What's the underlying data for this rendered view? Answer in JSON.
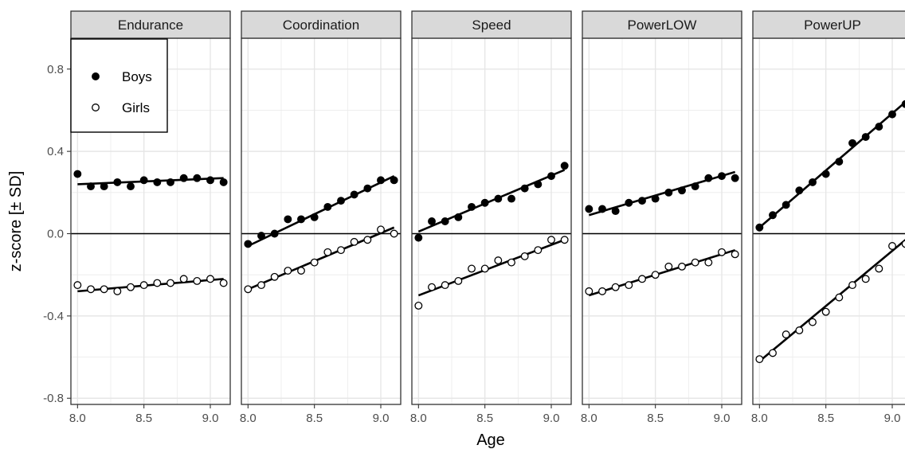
{
  "chart_data": {
    "type": "scatter",
    "xlabel": "Age",
    "ylabel": "z-score [± SD]",
    "xlim": [
      7.95,
      9.15
    ],
    "ylim": [
      -0.83,
      0.95
    ],
    "x_ticks": [
      8.0,
      8.5,
      9.0
    ],
    "x_tick_labels": [
      "8.0",
      "8.5",
      "9.0"
    ],
    "y_ticks": [
      -0.8,
      -0.4,
      0.0,
      0.4,
      0.8
    ],
    "y_tick_labels": [
      "-0.8",
      "-0.4",
      "0.0",
      "0.4",
      "0.8"
    ],
    "reference_line_y": 0,
    "grid": true,
    "legend": {
      "placement": "top-left",
      "entries": [
        {
          "label": "Boys",
          "marker": "filled-circle"
        },
        {
          "label": "Girls",
          "marker": "open-circle"
        }
      ]
    },
    "colors": {
      "point": "#000000",
      "fit_line": "#000000",
      "strip_bg": "#d9d9d9",
      "grid": "#ebebeb"
    },
    "ages": [
      8.0,
      8.1,
      8.2,
      8.3,
      8.4,
      8.5,
      8.6,
      8.7,
      8.8,
      8.9,
      9.0,
      9.1
    ],
    "panels": [
      {
        "name": "Endurance",
        "series": [
          {
            "name": "Boys",
            "values": [
              0.29,
              0.23,
              0.23,
              0.25,
              0.23,
              0.26,
              0.25,
              0.25,
              0.27,
              0.27,
              0.26,
              0.25
            ],
            "fit": [
              0.24,
              0.27
            ]
          },
          {
            "name": "Girls",
            "values": [
              -0.25,
              -0.27,
              -0.27,
              -0.28,
              -0.26,
              -0.25,
              -0.24,
              -0.24,
              -0.22,
              -0.23,
              -0.22,
              -0.24
            ],
            "fit": [
              -0.28,
              -0.22
            ]
          }
        ]
      },
      {
        "name": "Coordination",
        "series": [
          {
            "name": "Boys",
            "values": [
              -0.05,
              -0.01,
              0.0,
              0.07,
              0.07,
              0.08,
              0.13,
              0.16,
              0.19,
              0.22,
              0.26,
              0.26
            ],
            "fit": [
              -0.06,
              0.28
            ]
          },
          {
            "name": "Girls",
            "values": [
              -0.27,
              -0.25,
              -0.21,
              -0.18,
              -0.18,
              -0.14,
              -0.09,
              -0.08,
              -0.04,
              -0.03,
              0.02,
              0.0
            ],
            "fit": [
              -0.27,
              0.03
            ]
          }
        ]
      },
      {
        "name": "Speed",
        "series": [
          {
            "name": "Boys",
            "values": [
              -0.02,
              0.06,
              0.06,
              0.08,
              0.13,
              0.15,
              0.17,
              0.17,
              0.22,
              0.24,
              0.28,
              0.33
            ],
            "fit": [
              0.01,
              0.31
            ]
          },
          {
            "name": "Girls",
            "values": [
              -0.35,
              -0.26,
              -0.25,
              -0.23,
              -0.17,
              -0.17,
              -0.13,
              -0.14,
              -0.11,
              -0.08,
              -0.03,
              -0.03
            ],
            "fit": [
              -0.3,
              -0.03
            ]
          }
        ]
      },
      {
        "name": "PowerLOW",
        "series": [
          {
            "name": "Boys",
            "values": [
              0.12,
              0.12,
              0.11,
              0.15,
              0.16,
              0.17,
              0.2,
              0.21,
              0.23,
              0.27,
              0.28,
              0.27
            ],
            "fit": [
              0.09,
              0.3
            ]
          },
          {
            "name": "Girls",
            "values": [
              -0.28,
              -0.28,
              -0.26,
              -0.25,
              -0.22,
              -0.2,
              -0.16,
              -0.16,
              -0.14,
              -0.14,
              -0.09,
              -0.1
            ],
            "fit": [
              -0.3,
              -0.08
            ]
          }
        ]
      },
      {
        "name": "PowerUP",
        "series": [
          {
            "name": "Boys",
            "values": [
              0.03,
              0.09,
              0.14,
              0.21,
              0.25,
              0.29,
              0.35,
              0.44,
              0.47,
              0.52,
              0.58,
              0.63
            ],
            "fit": [
              0.03,
              0.64
            ]
          },
          {
            "name": "Girls",
            "values": [
              -0.61,
              -0.58,
              -0.49,
              -0.47,
              -0.43,
              -0.38,
              -0.31,
              -0.25,
              -0.22,
              -0.17,
              -0.06,
              -0.05
            ],
            "fit": [
              -0.62,
              -0.03
            ]
          }
        ]
      }
    ]
  }
}
